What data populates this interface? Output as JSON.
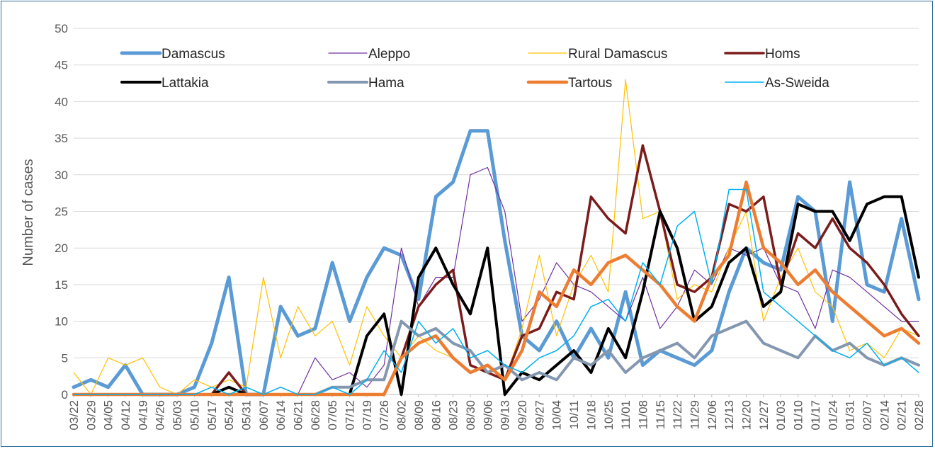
{
  "chart_data": {
    "type": "line",
    "title": "",
    "xlabel": "",
    "ylabel": "Number of cases",
    "ylim": [
      0,
      50
    ],
    "yticks": [
      0,
      5,
      10,
      15,
      20,
      25,
      30,
      35,
      40,
      45,
      50
    ],
    "grid": "horizontal",
    "legend_position": "top, inside plot area, 4 columns x 2 rows",
    "categories": [
      "03/22",
      "03/29",
      "04/05",
      "04/12",
      "04/19",
      "04/26",
      "05/03",
      "05/10",
      "05/17",
      "05/24",
      "05/31",
      "06/07",
      "06/14",
      "06/21",
      "06/28",
      "07/05",
      "07/12",
      "07/19",
      "07/26",
      "08/02",
      "08/09",
      "08/16",
      "08/23",
      "08/30",
      "09/06",
      "09/13",
      "09/20",
      "09/27",
      "10/04",
      "10/11",
      "10/18",
      "10/25",
      "11/01",
      "11/08",
      "11/15",
      "11/22",
      "11/29",
      "12/06",
      "12/13",
      "12/20",
      "12/27",
      "01/03",
      "01/10",
      "01/17",
      "01/24",
      "01/31",
      "02/07",
      "02/14",
      "02/21",
      "02/28"
    ],
    "series": [
      {
        "name": "Damascus",
        "color": "#5b9bd5",
        "width": 5,
        "values": [
          1,
          2,
          1,
          4,
          0,
          0,
          0,
          1,
          7,
          16,
          0,
          0,
          12,
          8,
          9,
          18,
          10,
          16,
          20,
          19,
          13,
          27,
          29,
          36,
          36,
          21,
          8,
          6,
          10,
          5,
          9,
          5,
          14,
          4,
          6,
          5,
          4,
          6,
          14,
          20,
          18,
          17,
          27,
          25,
          10,
          29,
          15,
          14,
          24,
          13
        ]
      },
      {
        "name": "Aleppo",
        "color": "#7030a0",
        "width": 1.2,
        "values": [
          0,
          0,
          0,
          0,
          0,
          0,
          0,
          0,
          0,
          0,
          0,
          0,
          0,
          0,
          5,
          2,
          3,
          1,
          4,
          20,
          12,
          16,
          16,
          30,
          31,
          25,
          10,
          13,
          18,
          15,
          14,
          12,
          10,
          16,
          9,
          12,
          17,
          15,
          20,
          19,
          20,
          15,
          14,
          9,
          17,
          16,
          14,
          12,
          10,
          10
        ]
      },
      {
        "name": "Rural Damascus",
        "color": "#ffc000",
        "width": 1.2,
        "values": [
          3,
          0,
          5,
          4,
          5,
          1,
          0,
          2,
          1,
          2,
          1,
          16,
          5,
          12,
          8,
          10,
          4,
          12,
          8,
          5,
          8,
          6,
          5,
          3,
          4,
          2,
          9,
          19,
          8,
          15,
          19,
          14,
          43,
          24,
          25,
          13,
          15,
          14,
          20,
          25,
          10,
          16,
          20,
          14,
          12,
          6,
          7,
          5,
          9,
          8
        ]
      },
      {
        "name": "Homs",
        "color": "#7b1c1c",
        "width": 3.5,
        "values": [
          0,
          0,
          0,
          0,
          0,
          0,
          0,
          0,
          0,
          3,
          0,
          0,
          0,
          0,
          0,
          0,
          0,
          0,
          0,
          5,
          12,
          15,
          17,
          4,
          3,
          2,
          8,
          9,
          14,
          13,
          27,
          24,
          22,
          34,
          25,
          15,
          14,
          16,
          26,
          25,
          27,
          15,
          22,
          20,
          24,
          20,
          18,
          15,
          11,
          8
        ]
      },
      {
        "name": "Lattakia",
        "color": "#000000",
        "width": 4,
        "values": [
          0,
          0,
          0,
          0,
          0,
          0,
          0,
          0,
          0,
          1,
          0,
          0,
          0,
          0,
          0,
          0,
          0,
          8,
          11,
          0,
          16,
          20,
          15,
          11,
          20,
          0,
          3,
          2,
          4,
          6,
          3,
          9,
          5,
          14,
          25,
          20,
          10,
          12,
          18,
          20,
          12,
          14,
          26,
          25,
          25,
          21,
          26,
          27,
          27,
          16
        ]
      },
      {
        "name": "Hama",
        "color": "#8497b0",
        "width": 4,
        "values": [
          0,
          0,
          0,
          0,
          0,
          0,
          0,
          0,
          0,
          0,
          0,
          0,
          0,
          0,
          0,
          1,
          1,
          2,
          2,
          10,
          8,
          9,
          7,
          6,
          3,
          4,
          2,
          3,
          2,
          5,
          4,
          6,
          3,
          5,
          6,
          7,
          5,
          8,
          9,
          10,
          7,
          6,
          5,
          8,
          6,
          7,
          5,
          4,
          5,
          4
        ]
      },
      {
        "name": "Tartous",
        "color": "#ed7d31",
        "width": 4.5,
        "values": [
          0,
          0,
          0,
          0,
          0,
          0,
          0,
          0,
          0,
          0,
          0,
          0,
          0,
          0,
          0,
          0,
          0,
          0,
          0,
          5,
          7,
          8,
          5,
          3,
          4,
          2,
          6,
          14,
          12,
          17,
          15,
          18,
          19,
          17,
          15,
          12,
          10,
          16,
          19,
          29,
          20,
          18,
          15,
          17,
          14,
          12,
          10,
          8,
          9,
          7
        ]
      },
      {
        "name": "As-Sweida",
        "color": "#00b0f0",
        "width": 1.5,
        "values": [
          0,
          0,
          0,
          0,
          0,
          0,
          0,
          0,
          1,
          0,
          1,
          0,
          1,
          0,
          0,
          1,
          0,
          2,
          6,
          3,
          10,
          7,
          9,
          5,
          6,
          4,
          3,
          5,
          6,
          8,
          12,
          13,
          10,
          18,
          15,
          23,
          25,
          15,
          28,
          28,
          14,
          12,
          10,
          8,
          6,
          5,
          7,
          4,
          5,
          3
        ]
      }
    ]
  }
}
